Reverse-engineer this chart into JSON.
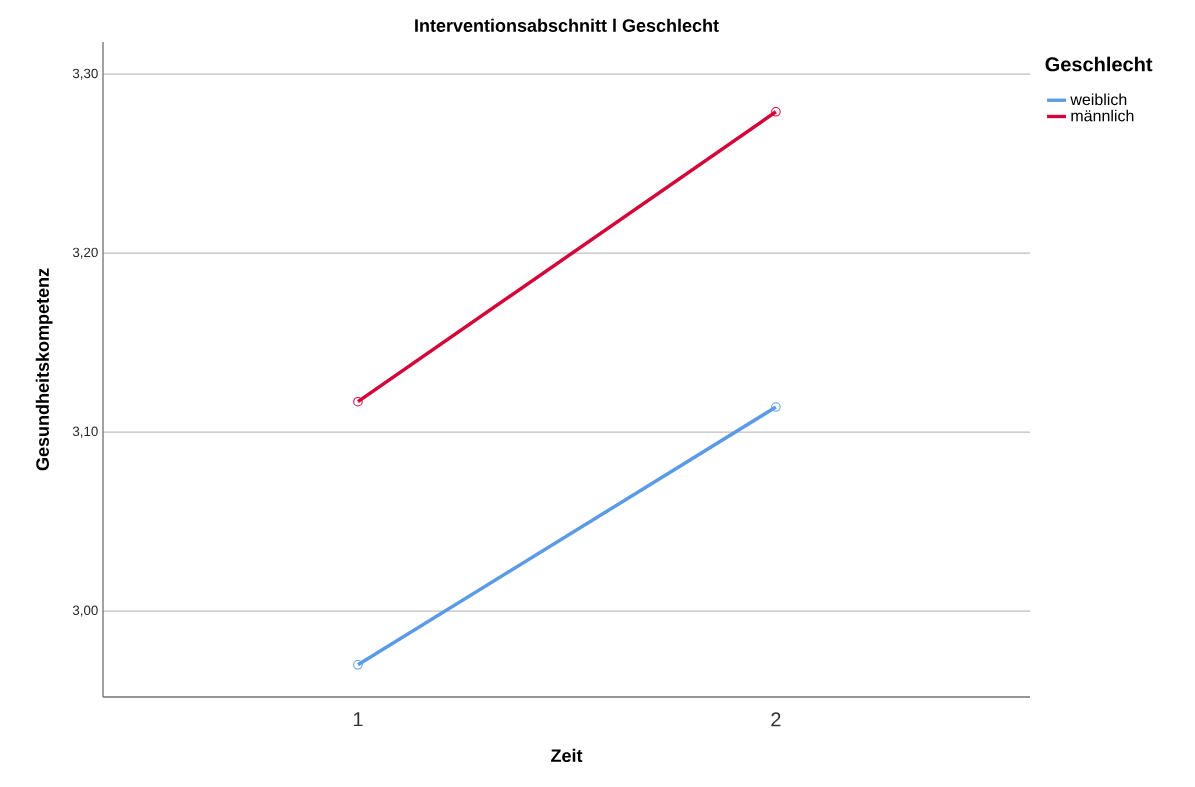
{
  "chart_data": {
    "type": "line",
    "title": "Interventionsabschnitt l Geschlecht",
    "xlabel": "Zeit",
    "ylabel": "Gesundheitskompetenz",
    "legend_title": "Geschlecht",
    "categories": [
      "1",
      "2"
    ],
    "series": [
      {
        "name": "weiblich",
        "color": "#5b9be6",
        "values": [
          2.97,
          3.114
        ]
      },
      {
        "name": "männlich",
        "color": "#d3063a",
        "values": [
          3.117,
          3.279
        ]
      }
    ],
    "ylim": [
      2.952,
      3.318
    ],
    "yticks": [
      {
        "value": 3.0,
        "label": "3,00"
      },
      {
        "value": 3.1,
        "label": "3,10"
      },
      {
        "value": 3.2,
        "label": "3,20"
      },
      {
        "value": 3.3,
        "label": "3,30"
      }
    ],
    "grid": "y",
    "legend": "top right",
    "marker": "circle",
    "line_style": "solid"
  }
}
